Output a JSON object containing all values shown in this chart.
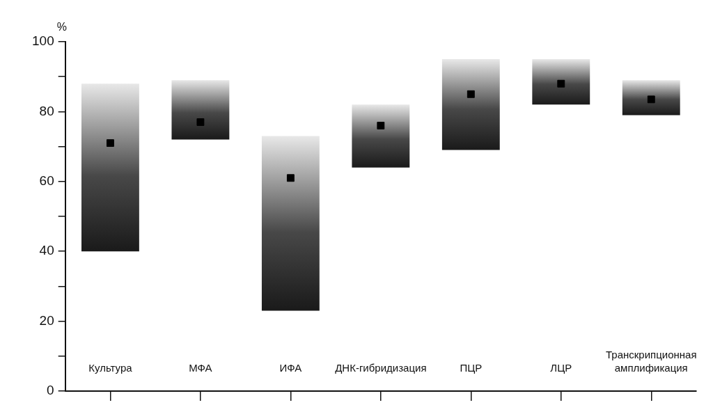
{
  "chart_data": {
    "type": "bar",
    "ylabel": "%",
    "categories": [
      "Культура",
      "МФА",
      "ИФА",
      "ДНК-гибридизация",
      "ПЦР",
      "ЛЦР",
      "Транскрипционная амплификация"
    ],
    "series": [
      {
        "type": "bar",
        "color": "#1a1a1a",
        "base": [
          40,
          72,
          23,
          64,
          69,
          82,
          79
        ],
        "values": [
          48,
          17,
          50,
          18,
          26,
          13,
          10
        ]
      },
      {
        "type": "scatter",
        "color": "#000000",
        "marker": "square",
        "x": [
          "Культура",
          "МФА",
          "ИФА",
          "ДНК-гибридизация",
          "ПЦР",
          "ЛЦР",
          "Транскрипционная амплификация"
        ],
        "values": [
          71,
          77,
          61,
          76,
          85,
          88,
          83.5
        ]
      }
    ],
    "ylim": [
      0,
      100
    ],
    "yticks": [
      0,
      {
        "value": 10,
        "label": null
      },
      20,
      {
        "value": 30,
        "label": null
      },
      40,
      {
        "value": 50,
        "label": null
      },
      60,
      {
        "value": 70,
        "label": null
      },
      80,
      {
        "value": 90,
        "label": null
      },
      100
    ],
    "grid": false,
    "legend": false
  }
}
